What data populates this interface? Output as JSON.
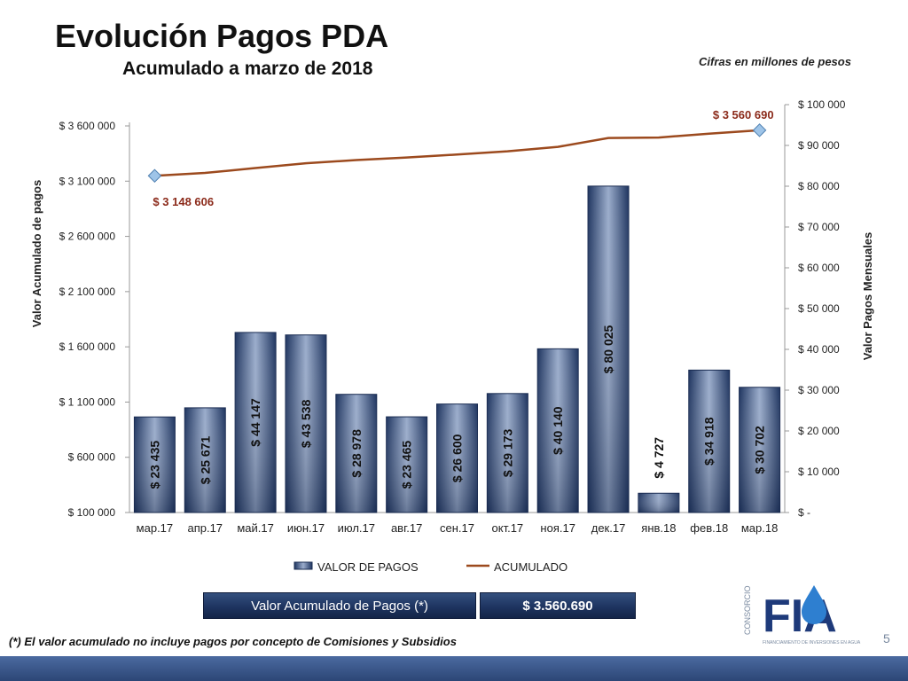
{
  "header": {
    "title": "Evolución Pagos PDA",
    "subtitle": "Acumulado a marzo de 2018",
    "units_note": "Cifras en millones de pesos"
  },
  "chart_data": {
    "type": "bar",
    "categories": [
      "мар.17",
      "апр.17",
      "май.17",
      "июн.17",
      "июл.17",
      "авг.17",
      "сен.17",
      "окт.17",
      "ноя.17",
      "дек.17",
      "янв.18",
      "фев.18",
      "мар.18"
    ],
    "series": [
      {
        "name": "VALOR DE PAGOS",
        "type": "bar",
        "axis": "right",
        "values": [
          23435,
          25671,
          44147,
          43538,
          28978,
          23465,
          26600,
          29173,
          40140,
          80025,
          4727,
          34918,
          30702
        ],
        "labels": [
          "$ 23 435",
          "$ 25 671",
          "$ 44 147",
          "$ 43 538",
          "$ 28 978",
          "$ 23 465",
          "$ 26 600",
          "$ 29 173",
          "$ 40 140",
          "$ 80 025",
          "$ 4 727",
          "$ 34 918",
          "$ 30 702"
        ]
      },
      {
        "name": "ACUMULADO",
        "type": "line",
        "axis": "left",
        "values": [
          3148606,
          3174277,
          3218424,
          3261962,
          3290940,
          3314405,
          3341005,
          3370178,
          3410318,
          3490343,
          3495070,
          3529988,
          3560690
        ],
        "first_label": "$ 3 148 606",
        "last_label": "$ 3 560 690"
      }
    ],
    "y_left": {
      "label": "Valor Acumulado de pagos",
      "min": 100000,
      "max": 3600000,
      "ticks": [
        100000,
        600000,
        1100000,
        1600000,
        2100000,
        2600000,
        3100000,
        3600000
      ],
      "tick_labels": [
        "$ 100 000",
        "$ 600 000",
        "$ 1 100 000",
        "$ 1 600 000",
        "$ 2 100 000",
        "$ 2 600 000",
        "$ 3 100 000",
        "$ 3 600 000"
      ]
    },
    "y_right": {
      "label": "Valor Pagos Mensuales",
      "min": 0,
      "max": 100000,
      "ticks": [
        0,
        10000,
        20000,
        30000,
        40000,
        50000,
        60000,
        70000,
        80000,
        90000,
        100000
      ],
      "tick_labels": [
        "$ -",
        "$ 10 000",
        "$ 20 000",
        "$ 30 000",
        "$ 40 000",
        "$ 50 000",
        "$ 60 000",
        "$ 70 000",
        "$ 80 000",
        "$ 90 000",
        "$ 100 000"
      ]
    },
    "legend": {
      "position": "bottom",
      "items": [
        "VALOR DE PAGOS",
        "ACUMULADO"
      ]
    },
    "grid": false,
    "colors": {
      "bar": "#3a5582",
      "line": "#9c4a1e",
      "label_line": "#8b2a1a"
    }
  },
  "summary": {
    "label": "Valor Acumulado de Pagos (*)",
    "value": "$     3.560.690"
  },
  "footnote": "(*) El valor acumulado no incluye pagos por concepto de Comisiones y Subsidios",
  "page_number": "5",
  "logo": {
    "letters": "FIA",
    "side_text": "CONSORCIO",
    "tagline": "FINANCIAMIENTO DE INVERSIONES EN AGUA"
  }
}
